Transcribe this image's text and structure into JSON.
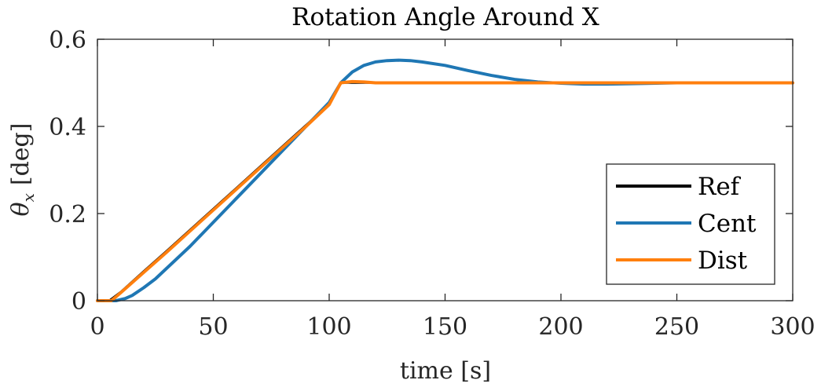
{
  "chart_data": {
    "type": "line",
    "title": "Rotation Angle Around X",
    "xlabel": "time [s]",
    "ylabel_symbol": "θ",
    "ylabel_subscript": "x",
    "ylabel_unit": "[deg]",
    "xlim": [
      0,
      300
    ],
    "ylim": [
      0,
      0.6
    ],
    "xticks": [
      0,
      50,
      100,
      150,
      200,
      250,
      300
    ],
    "yticks": [
      0,
      0.2,
      0.4,
      0.6
    ],
    "xtick_labels": [
      "0",
      "50",
      "100",
      "150",
      "200",
      "250",
      "300"
    ],
    "ytick_labels": [
      "0",
      "0.2",
      "0.4",
      "0.6"
    ],
    "grid": false,
    "legend_position": "lower-right",
    "series": [
      {
        "name": "Ref",
        "color": "#000000",
        "x": [
          0,
          5,
          10,
          20,
          30,
          40,
          50,
          60,
          70,
          80,
          90,
          100,
          105,
          110,
          115,
          120,
          130,
          150,
          200,
          250,
          300
        ],
        "y": [
          0,
          0,
          0.02,
          0.068,
          0.115,
          0.163,
          0.211,
          0.259,
          0.307,
          0.355,
          0.403,
          0.451,
          0.5,
          0.5,
          0.5,
          0.5,
          0.5,
          0.5,
          0.5,
          0.5,
          0.5
        ]
      },
      {
        "name": "Cent",
        "color": "#1f77b4",
        "x": [
          0,
          8,
          12,
          15,
          20,
          25,
          30,
          40,
          50,
          60,
          70,
          80,
          90,
          100,
          105,
          110,
          115,
          120,
          125,
          130,
          135,
          140,
          150,
          160,
          170,
          180,
          190,
          200,
          210,
          220,
          230,
          250,
          300
        ],
        "y": [
          0,
          0,
          0.005,
          0.012,
          0.03,
          0.05,
          0.075,
          0.125,
          0.18,
          0.235,
          0.29,
          0.345,
          0.4,
          0.455,
          0.5,
          0.525,
          0.54,
          0.548,
          0.551,
          0.552,
          0.551,
          0.548,
          0.54,
          0.528,
          0.517,
          0.508,
          0.502,
          0.499,
          0.497,
          0.497,
          0.498,
          0.5,
          0.5
        ]
      },
      {
        "name": "Dist",
        "color": "#ff7f0e",
        "x": [
          0,
          6,
          10,
          20,
          30,
          40,
          50,
          60,
          70,
          80,
          90,
          100,
          105,
          110,
          115,
          120,
          130,
          150,
          200,
          250,
          300
        ],
        "y": [
          0,
          0,
          0.018,
          0.065,
          0.112,
          0.16,
          0.208,
          0.256,
          0.304,
          0.352,
          0.4,
          0.45,
          0.5,
          0.503,
          0.502,
          0.5,
          0.5,
          0.5,
          0.5,
          0.5,
          0.5
        ]
      }
    ]
  }
}
